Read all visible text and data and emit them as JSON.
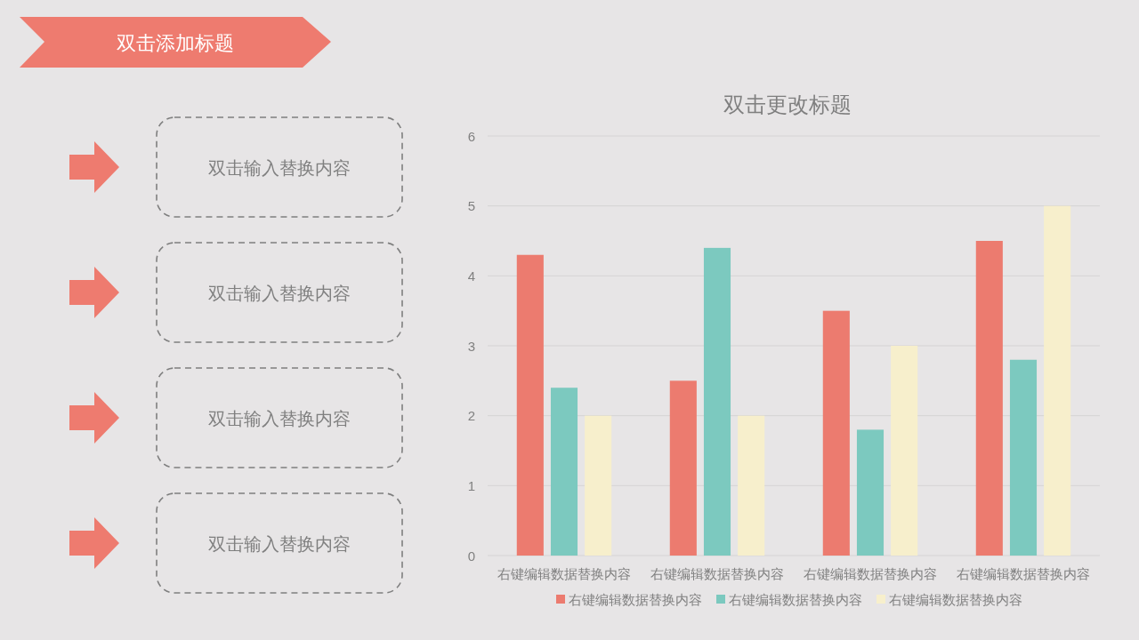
{
  "chart_data": [
    {
      "type": "other",
      "title": "双击添加标题",
      "annotations": [
        "双击输入替换内容",
        "双击输入替换内容",
        "双击输入替换内容",
        "双击输入替换内容"
      ]
    },
    {
      "type": "bar",
      "title": "双击更改标题",
      "categories": [
        "右键编辑数据替换内容",
        "右键编辑数据替换内容",
        "右键编辑数据替换内容",
        "右键编辑数据替换内容"
      ],
      "series": [
        {
          "name": "右键编辑数据替换内容",
          "color": "#ec7b6f",
          "values": [
            4.3,
            2.5,
            3.5,
            4.5
          ]
        },
        {
          "name": "右键编辑数据替换内容",
          "color": "#7cc9bf",
          "values": [
            2.4,
            4.4,
            1.8,
            2.8
          ]
        },
        {
          "name": "右键编辑数据替换内容",
          "color": "#f7efcc",
          "values": [
            2.0,
            2.0,
            3.0,
            5.0
          ]
        }
      ],
      "ylim": [
        0,
        6
      ],
      "yticks": [
        0,
        1,
        2,
        3,
        4,
        5,
        6
      ],
      "grid": "y",
      "legend": "bottom"
    }
  ]
}
